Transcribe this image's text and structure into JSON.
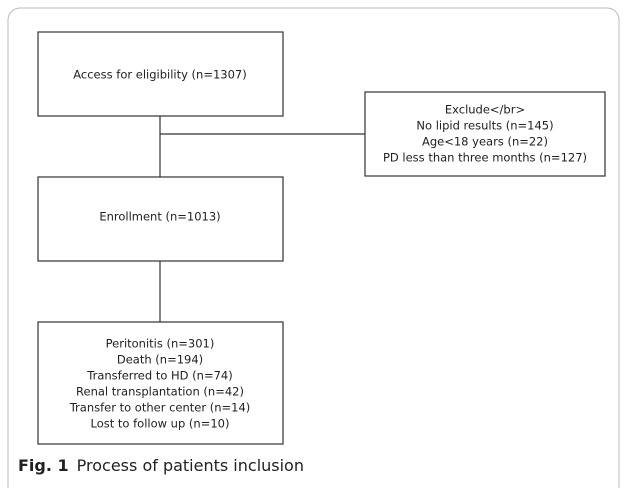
{
  "nodes": [
    {
      "lines": [
        "Access for eligibility (n=1307)"
      ]
    },
    {
      "lines": [
        "Exclude</br>",
        "No lipid results (n=145)",
        "Age<18 years (n=22)",
        "PD less than three months (n=127)"
      ]
    },
    {
      "lines": [
        "Enrollment (n=1013)"
      ]
    },
    {
      "lines": [
        "Peritonitis (n=301)",
        "Death (n=194)",
        "Transferred to HD (n=74)",
        "Renal transplantation (n=42)",
        "Transfer to other center (n=14)",
        "Lost to follow up (n=10)"
      ]
    }
  ],
  "caption": {
    "label": "Fig. 1",
    "text": "Process of patients inclusion"
  }
}
